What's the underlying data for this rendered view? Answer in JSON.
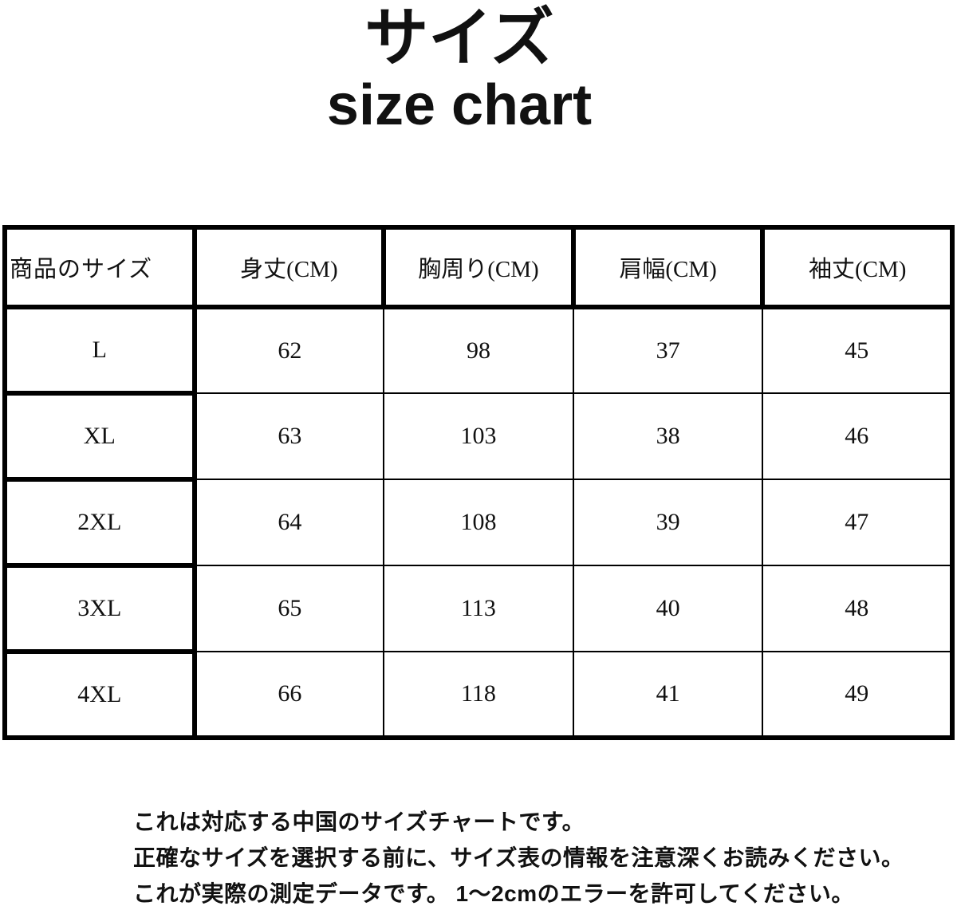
{
  "header": {
    "title_jp": "サイズ",
    "title_en": "size chart"
  },
  "table": {
    "columns": [
      "商品のサイズ",
      "身丈(CM)",
      "胸周り(CM)",
      "肩幅(CM)",
      "袖丈(CM)"
    ],
    "rows": [
      {
        "cells": [
          "L",
          "62",
          "98",
          "37",
          "45"
        ]
      },
      {
        "cells": [
          "XL",
          "63",
          "103",
          "38",
          "46"
        ]
      },
      {
        "cells": [
          "2XL",
          "64",
          "108",
          "39",
          "47"
        ]
      },
      {
        "cells": [
          "3XL",
          "65",
          "113",
          "40",
          "48"
        ]
      },
      {
        "cells": [
          "4XL",
          "66",
          "118",
          "41",
          "49"
        ]
      }
    ]
  },
  "footer": {
    "lines": [
      "これは対応する中国のサイズチャートです。",
      "正確なサイズを選択する前に、サイズ表の情報を注意深くお読みください。",
      "これが実際の測定データです。 1～2cmのエラーを許可してください。"
    ]
  },
  "colors": {
    "background": "#ffffff",
    "text": "#111111",
    "table_border": "#000000"
  }
}
